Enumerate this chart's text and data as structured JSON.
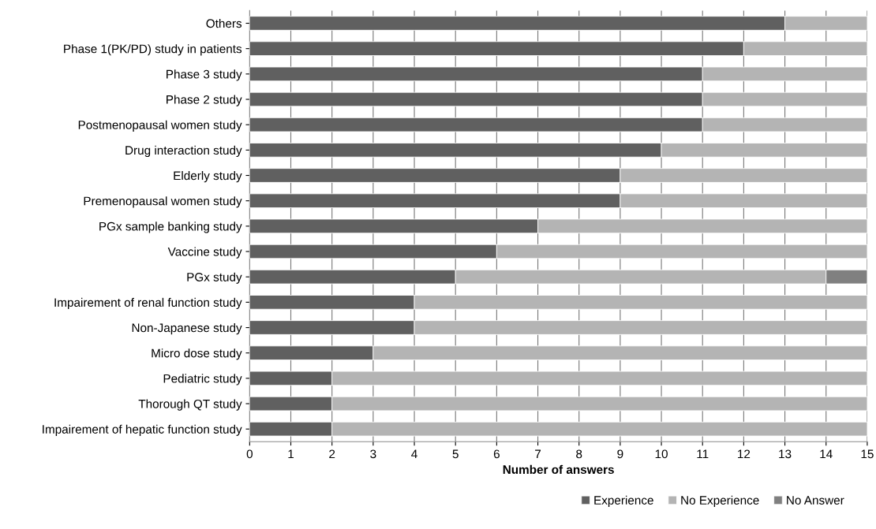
{
  "chart_data": {
    "type": "bar",
    "orientation": "horizontal",
    "stacked": true,
    "xlabel": "Number of answers",
    "categories": [
      "Others",
      "Phase 1(PK/PD) study in patients",
      "Phase 3 study",
      "Phase 2 study",
      "Postmenopausal women study",
      "Drug interaction study",
      "Elderly study",
      "Premenopausal women study",
      "PGx sample banking study",
      "Vaccine study",
      "PGx study",
      "Impairement of renal function study",
      "Non-Japanese study",
      "Micro dose study",
      "Pediatric study",
      "Thorough QT study",
      "Impairement of hepatic function study"
    ],
    "series": [
      {
        "name": "Experience",
        "color": "#606060",
        "values": [
          13,
          12,
          11,
          11,
          11,
          10,
          9,
          9,
          7,
          6,
          5,
          4,
          4,
          3,
          2,
          2,
          2
        ]
      },
      {
        "name": "No Experience",
        "color": "#b4b4b4",
        "values": [
          2,
          3,
          4,
          4,
          4,
          5,
          6,
          6,
          8,
          9,
          9,
          11,
          11,
          12,
          13,
          13,
          13
        ]
      },
      {
        "name": "No Answer",
        "color": "#808080",
        "values": [
          null,
          null,
          null,
          null,
          null,
          null,
          null,
          null,
          null,
          null,
          1,
          null,
          null,
          null,
          null,
          null,
          null
        ]
      }
    ],
    "xlim": [
      0,
      15
    ],
    "xticks": [
      0,
      1,
      2,
      3,
      4,
      5,
      6,
      7,
      8,
      9,
      10,
      11,
      12,
      13,
      14,
      15
    ],
    "grid": "x",
    "legend": "bottom"
  }
}
